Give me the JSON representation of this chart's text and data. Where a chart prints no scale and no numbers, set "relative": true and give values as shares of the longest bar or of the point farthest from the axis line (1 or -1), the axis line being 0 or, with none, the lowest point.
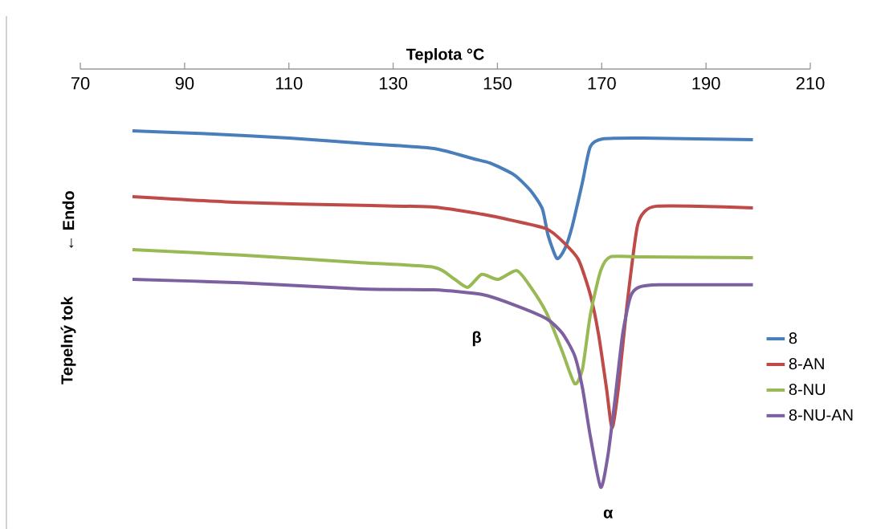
{
  "chart_data": {
    "type": "line",
    "relative": true,
    "xlabel": "Teplota °C",
    "ylabel": "Tepelný tok",
    "xlim": [
      70,
      210
    ],
    "xticks": [
      70,
      90,
      110,
      130,
      150,
      170,
      190,
      210
    ],
    "legend": "right",
    "annotations": [
      "← Endo",
      "β",
      "α"
    ],
    "series": [
      {
        "name": "8",
        "color": "#4a7ebb",
        "x": [
          80,
          94.7,
          110.1,
          125.5,
          137.8,
          145.5,
          148.6,
          153.2,
          156.3,
          158.6,
          159.7,
          161.4,
          162.9,
          164.3,
          166.3,
          167.8,
          170.2,
          177.9,
          199
        ],
        "values": [
          -0.148,
          -0.155,
          -0.165,
          -0.179,
          -0.19,
          -0.215,
          -0.225,
          -0.253,
          -0.29,
          -0.334,
          -0.397,
          -0.453,
          -0.43,
          -0.378,
          -0.271,
          -0.186,
          -0.167,
          -0.165,
          -0.169
        ]
      },
      {
        "name": "8-AN",
        "color": "#be4b48",
        "x": [
          80,
          100.8,
          123.9,
          137.8,
          147.0,
          153.2,
          159.4,
          162.4,
          165.5,
          167.8,
          169.4,
          170.9,
          172.0,
          173.2,
          174.8,
          176.8,
          178.3,
          180.5,
          188.6,
          199
        ],
        "values": [
          -0.305,
          -0.319,
          -0.326,
          -0.33,
          -0.347,
          -0.363,
          -0.382,
          -0.411,
          -0.455,
          -0.539,
          -0.635,
          -0.762,
          -0.858,
          -0.762,
          -0.57,
          -0.378,
          -0.34,
          -0.328,
          -0.328,
          -0.332
        ]
      },
      {
        "name": "8-NU",
        "color": "#98b954",
        "x": [
          80,
          100.8,
          123.9,
          137.8,
          141.6,
          144.3,
          147.0,
          150.1,
          153.7,
          156.3,
          159.4,
          162.4,
          164.8,
          166.3,
          167.8,
          169.8,
          171.7,
          177.9,
          199
        ],
        "values": [
          -0.432,
          -0.445,
          -0.463,
          -0.474,
          -0.501,
          -0.522,
          -0.491,
          -0.503,
          -0.482,
          -0.52,
          -0.583,
          -0.674,
          -0.752,
          -0.718,
          -0.589,
          -0.482,
          -0.449,
          -0.449,
          -0.451
        ]
      },
      {
        "name": "8-NU-AN",
        "color": "#7d60a0",
        "x": [
          80,
          100.8,
          123.9,
          137.8,
          147.0,
          153.2,
          159.4,
          162.4,
          164.8,
          166.3,
          167.8,
          169.8,
          171.2,
          172.5,
          174.0,
          175.5,
          177.1,
          181.0,
          199
        ],
        "values": [
          -0.503,
          -0.511,
          -0.526,
          -0.528,
          -0.539,
          -0.564,
          -0.597,
          -0.631,
          -0.685,
          -0.762,
          -0.877,
          -1,
          -0.923,
          -0.795,
          -0.635,
          -0.545,
          -0.522,
          -0.516,
          -0.516
        ]
      }
    ]
  }
}
